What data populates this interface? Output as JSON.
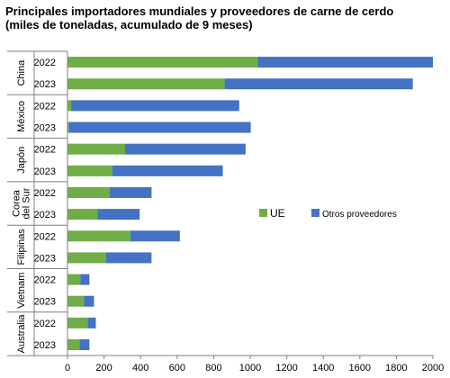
{
  "title_line1": "Principales importadores mundiales y proveedores de carne de cerdo",
  "title_line2": "(miles de toneladas, acumulado de 9 meses)",
  "colors": {
    "ue": "#70ad47",
    "otros": "#4472c4",
    "axis": "#7f7f7f"
  },
  "chart_data": {
    "type": "bar",
    "orientation": "horizontal",
    "stacked": true,
    "title": "Principales importadores mundiales y proveedores de carne de cerdo (miles de toneladas, acumulado de 9 meses)",
    "xlim": [
      0,
      2000
    ],
    "xticks": [
      0,
      200,
      400,
      600,
      800,
      1000,
      1200,
      1400,
      1600,
      1800,
      2000
    ],
    "legend_position": "right-middle",
    "grid": false,
    "groups": [
      {
        "label": "China",
        "years": [
          "2022",
          "2023"
        ]
      },
      {
        "label": "México",
        "years": [
          "2022",
          "2023"
        ]
      },
      {
        "label": "Japón",
        "years": [
          "2022",
          "2023"
        ]
      },
      {
        "label": "Corea del Sur",
        "label_lines": [
          "Corea",
          "del Sur"
        ],
        "years": [
          "2022",
          "2023"
        ]
      },
      {
        "label": "Filipinas",
        "years": [
          "2022",
          "2023"
        ]
      },
      {
        "label": "Vietnam",
        "years": [
          "2022",
          "2023"
        ]
      },
      {
        "label": "Australia",
        "years": [
          "2022",
          "2023"
        ]
      }
    ],
    "series": [
      {
        "name": "UE",
        "values": [
          1040,
          860,
          20,
          8,
          315,
          245,
          230,
          165,
          345,
          210,
          70,
          90,
          110,
          65
        ]
      },
      {
        "name": "Otros proveedores",
        "values": [
          960,
          1030,
          920,
          995,
          660,
          605,
          230,
          230,
          270,
          250,
          50,
          55,
          45,
          55
        ]
      }
    ]
  }
}
